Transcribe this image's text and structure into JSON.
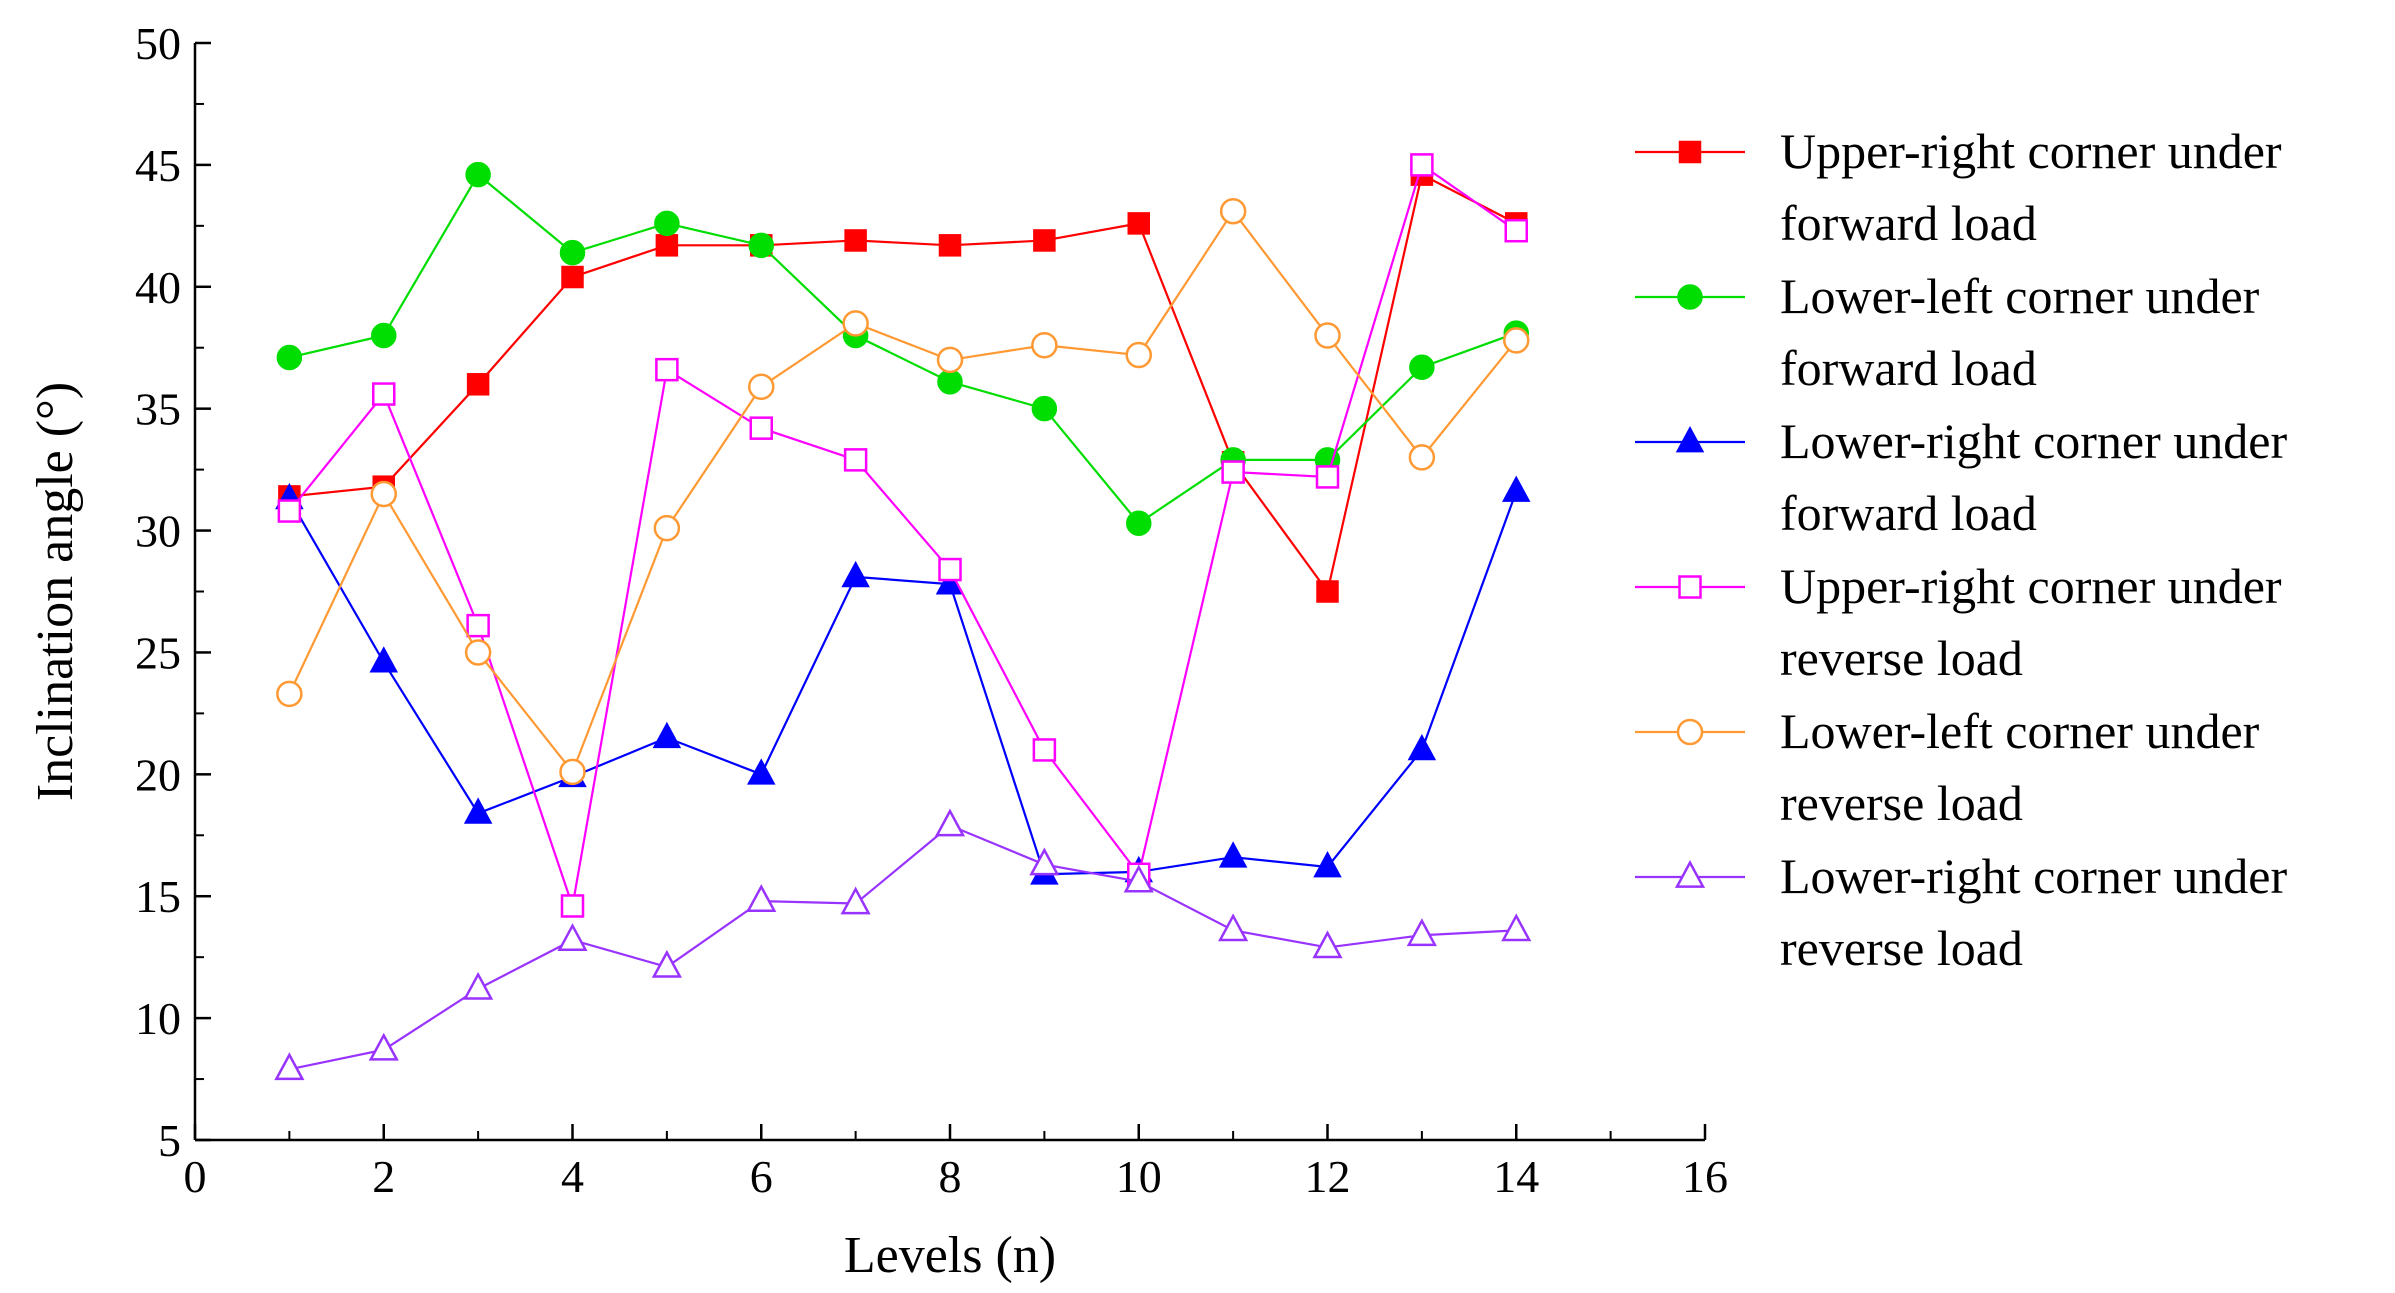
{
  "chart_data": {
    "type": "line",
    "title": "",
    "xlabel": "Levels (n)",
    "ylabel": "Inclination angle (°)",
    "xlim": [
      0,
      16
    ],
    "ylim": [
      5,
      50
    ],
    "xticks": [
      0,
      2,
      4,
      6,
      8,
      10,
      12,
      14,
      16
    ],
    "yticks": [
      5,
      10,
      15,
      20,
      25,
      30,
      35,
      40,
      45,
      50
    ],
    "xtick_labels": [
      "0",
      "2",
      "4",
      "6",
      "8",
      "10",
      "12",
      "14",
      "16"
    ],
    "ytick_labels": [
      "5",
      "10",
      "15",
      "20",
      "25",
      "30",
      "35",
      "40",
      "45",
      "50"
    ],
    "grid": false,
    "legend_position": "right",
    "x": [
      1,
      2,
      3,
      4,
      5,
      6,
      7,
      8,
      9,
      10,
      11,
      12,
      13,
      14
    ],
    "series": [
      {
        "name": "Upper-right corner under forward load",
        "legend_lines": [
          "Upper-right corner under",
          "forward load"
        ],
        "color": "#ff0000",
        "marker": "square",
        "filled": true,
        "values": [
          31.4,
          31.8,
          36.0,
          40.4,
          41.7,
          41.7,
          41.9,
          41.7,
          41.9,
          42.6,
          32.8,
          27.5,
          44.6,
          42.6
        ]
      },
      {
        "name": "Lower-left corner under forward load",
        "legend_lines": [
          "Lower-left corner under",
          "forward load"
        ],
        "color": "#00dd00",
        "marker": "circle",
        "filled": true,
        "values": [
          37.1,
          38.0,
          44.6,
          41.4,
          42.6,
          41.7,
          38.0,
          36.1,
          35.0,
          30.3,
          32.9,
          32.9,
          36.7,
          38.1
        ]
      },
      {
        "name": "Lower-right corner under forward load",
        "legend_lines": [
          "Lower-right corner under",
          "forward load"
        ],
        "color": "#0000ff",
        "marker": "triangle",
        "filled": true,
        "values": [
          31.3,
          24.6,
          18.4,
          19.9,
          21.5,
          20.0,
          28.1,
          27.8,
          15.9,
          16.0,
          16.6,
          16.2,
          21.0,
          31.6
        ]
      },
      {
        "name": "Upper-right corner under reverse load",
        "legend_lines": [
          "Upper-right corner under",
          "reverse load"
        ],
        "color": "#ff00ff",
        "marker": "square",
        "filled": false,
        "values": [
          30.8,
          35.6,
          26.1,
          14.6,
          36.6,
          34.2,
          32.9,
          28.4,
          21.0,
          15.9,
          32.4,
          32.2,
          45.0,
          42.3
        ]
      },
      {
        "name": "Lower-left corner under reverse load",
        "legend_lines": [
          "Lower-left corner under",
          "reverse load"
        ],
        "color": "#ff9933",
        "marker": "circle",
        "filled": false,
        "values": [
          23.3,
          31.5,
          25.0,
          20.1,
          30.1,
          35.9,
          38.5,
          37.0,
          37.6,
          37.2,
          43.1,
          38.0,
          33.0,
          37.8
        ]
      },
      {
        "name": "Lower-right corner under reverse load",
        "legend_lines": [
          "Lower-right corner under",
          "reverse load"
        ],
        "color": "#9933ff",
        "marker": "triangle",
        "filled": false,
        "values": [
          7.9,
          8.7,
          11.2,
          13.2,
          12.1,
          14.8,
          14.7,
          17.9,
          16.3,
          15.6,
          13.6,
          12.9,
          13.4,
          13.6
        ]
      }
    ]
  }
}
